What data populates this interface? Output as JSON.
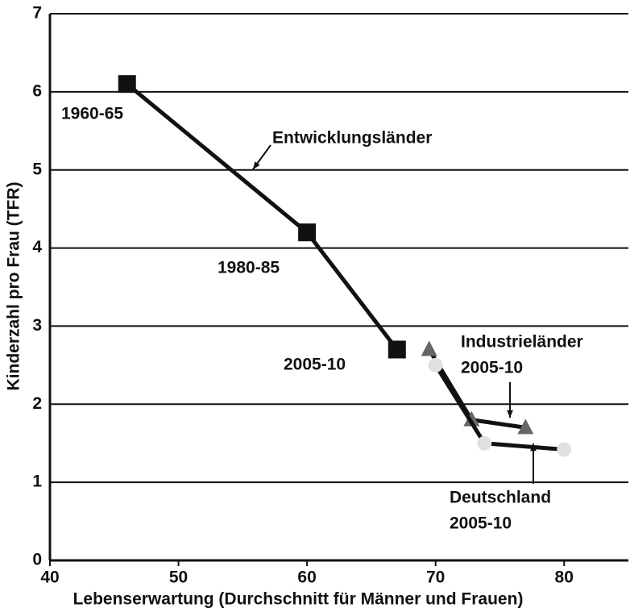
{
  "chart_data": {
    "type": "line",
    "x_label": "Lebenserwartung (Durchschnitt für Männer und Frauen)",
    "y_label": "Kinderzahl pro Frau (TFR)",
    "series": [
      {
        "name": "Entwicklungsländer",
        "color": "#111111",
        "marker": "square",
        "x": [
          46,
          60,
          67
        ],
        "values": [
          6.1,
          4.2,
          2.7
        ]
      },
      {
        "name": "Industrieländer",
        "color": "#666666",
        "marker": "triangle",
        "x": [
          69.5,
          72.8,
          77
        ],
        "values": [
          2.7,
          1.8,
          1.7
        ]
      },
      {
        "name": "Deutschland",
        "color": "#e0e0e0",
        "marker": "circle",
        "x": [
          70,
          73.8,
          80
        ],
        "values": [
          2.5,
          1.5,
          1.42
        ]
      }
    ],
    "annotations": [
      "1960-65",
      "1980-85",
      "2005-10",
      "2005-10",
      "2005-10"
    ],
    "xlim": [
      40,
      85
    ],
    "xticks": [
      40,
      50,
      60,
      70,
      80
    ],
    "ylim": [
      0,
      7
    ],
    "yticks": [
      0,
      1,
      2,
      3,
      4,
      5,
      6,
      7
    ],
    "grid": true
  }
}
